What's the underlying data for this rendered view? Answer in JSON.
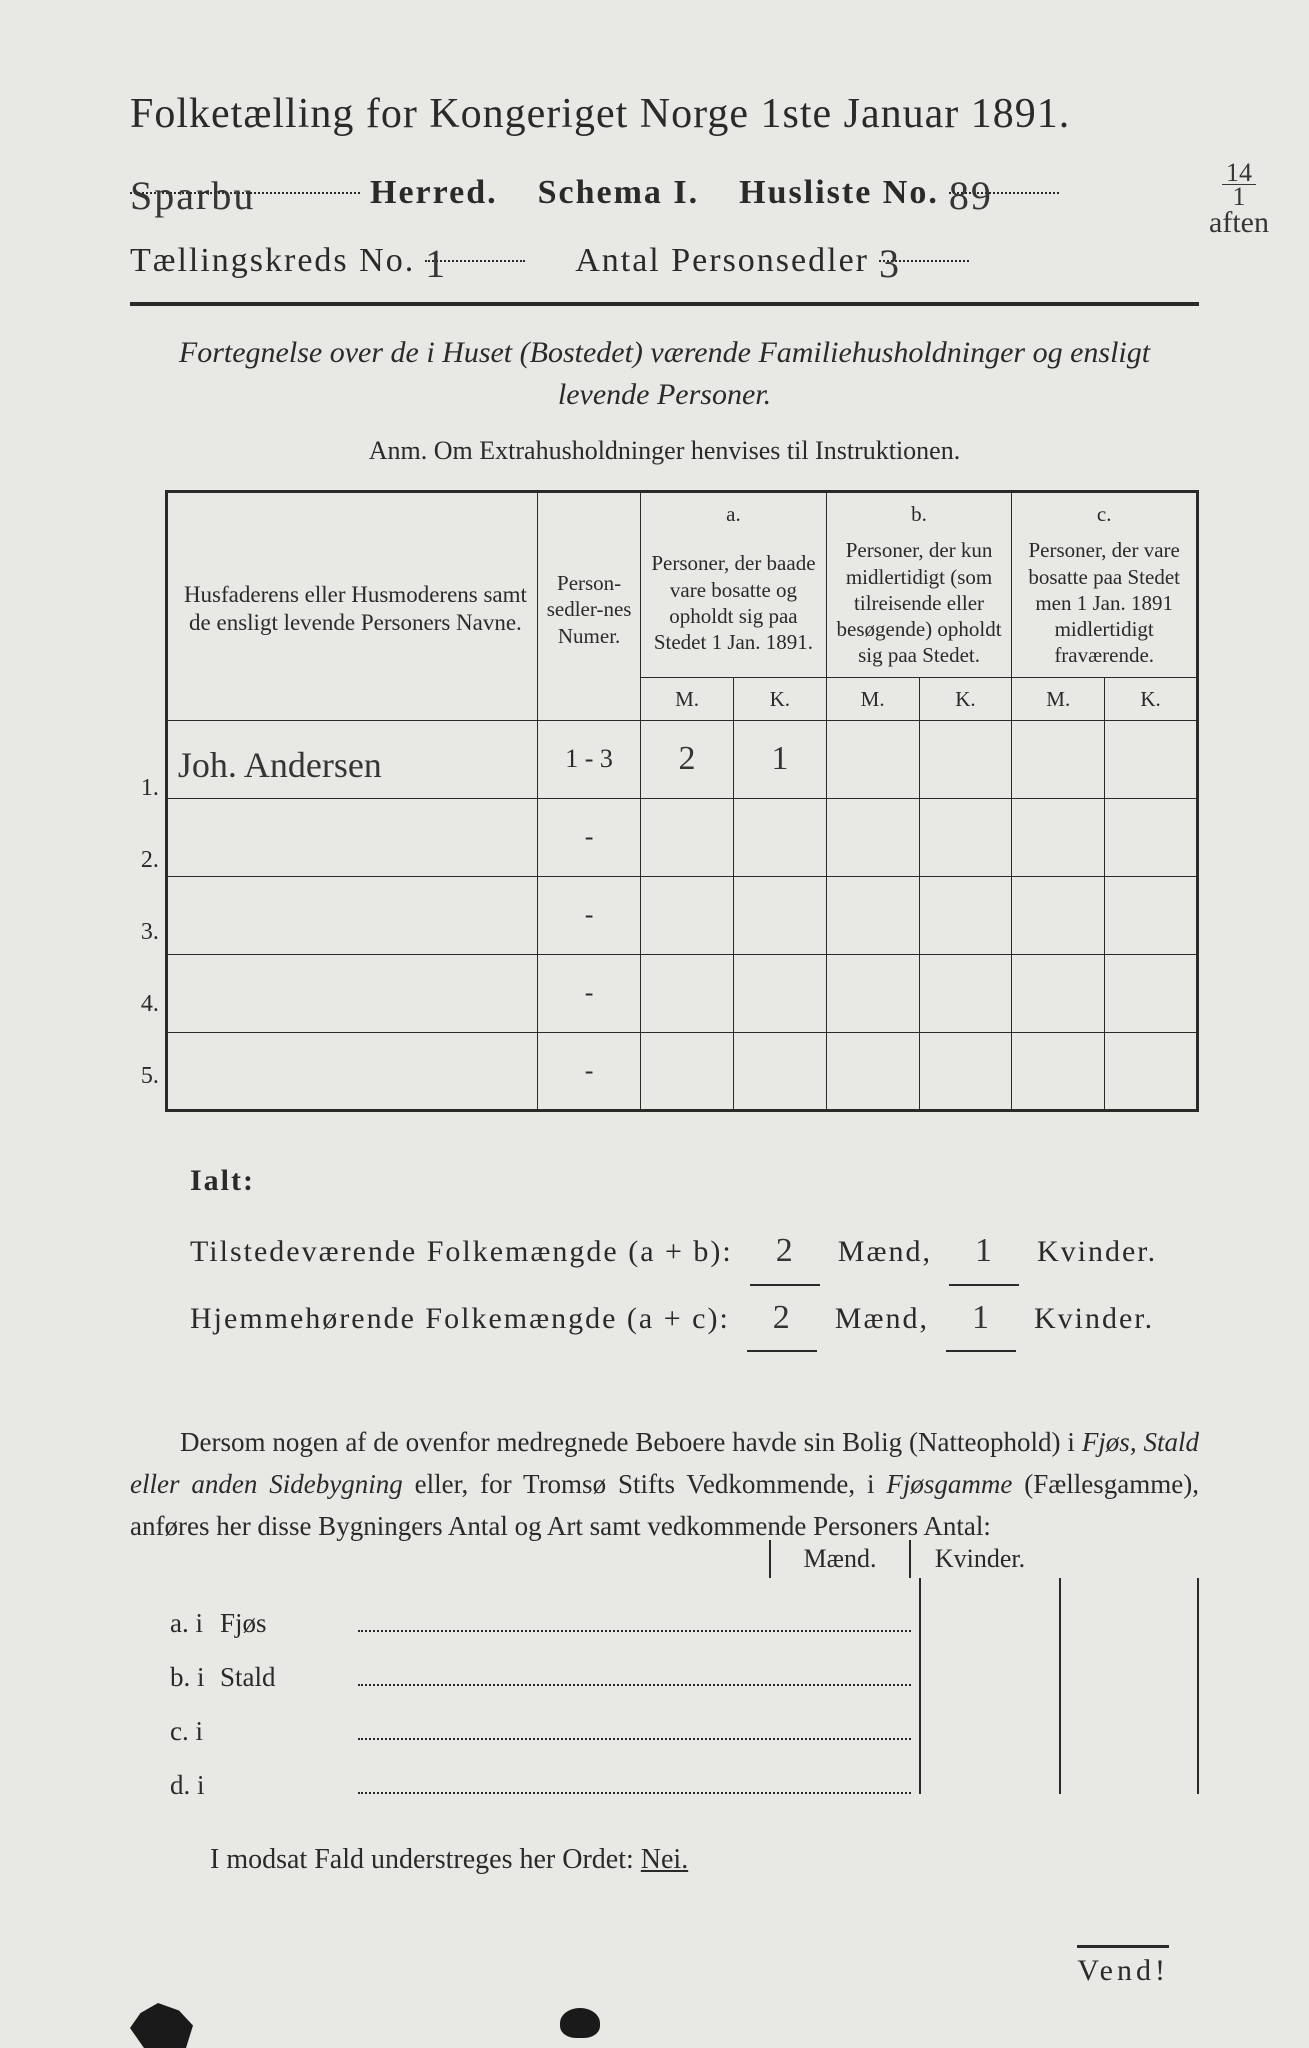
{
  "header": {
    "title": "Folketælling for Kongeriget Norge 1ste Januar 1891.",
    "herred_hand": "Sparbu",
    "herred_label": "Herred.",
    "schema_label": "Schema I.",
    "husliste_label": "Husliste No.",
    "husliste_hand": "89",
    "kreds_label": "Tællingskreds No.",
    "kreds_hand": "1",
    "antal_label": "Antal Personsedler",
    "antal_hand": "3",
    "margin_top": "14",
    "margin_bot": "1",
    "margin_after": "aften"
  },
  "subtitle": "Fortegnelse over de i Huset (Bostedet) værende Familiehusholdninger og ensligt levende Personer.",
  "anm": "Anm.   Om Extrahusholdninger henvises til Instruktionen.",
  "table": {
    "col_names": "Husfaderens eller Husmoderens samt de ensligt levende Personers Navne.",
    "col_num": "Person-sedler-nes Numer.",
    "grp_a_letter": "a.",
    "grp_a": "Personer, der baade vare bosatte og opholdt sig paa Stedet 1 Jan. 1891.",
    "grp_b_letter": "b.",
    "grp_b": "Personer, der kun midlertidigt (som tilreisende eller besøgende) opholdt sig paa Stedet.",
    "grp_c_letter": "c.",
    "grp_c": "Personer, der vare bosatte paa Stedet men 1 Jan. 1891 midlertidigt fraværende.",
    "m": "M.",
    "k": "K.",
    "rows": [
      {
        "n": "1.",
        "name": "Joh. Andersen",
        "num": "1 - 3",
        "am": "2",
        "ak": "1",
        "bm": "",
        "bk": "",
        "cm": "",
        "ck": ""
      },
      {
        "n": "2.",
        "name": "",
        "num": "-",
        "am": "",
        "ak": "",
        "bm": "",
        "bk": "",
        "cm": "",
        "ck": ""
      },
      {
        "n": "3.",
        "name": "",
        "num": "-",
        "am": "",
        "ak": "",
        "bm": "",
        "bk": "",
        "cm": "",
        "ck": ""
      },
      {
        "n": "4.",
        "name": "",
        "num": "-",
        "am": "",
        "ak": "",
        "bm": "",
        "bk": "",
        "cm": "",
        "ck": ""
      },
      {
        "n": "5.",
        "name": "",
        "num": "-",
        "am": "",
        "ak": "",
        "bm": "",
        "bk": "",
        "cm": "",
        "ck": ""
      }
    ]
  },
  "ialt": {
    "label": "Ialt:",
    "line1_a": "Tilstedeværende Folkemængde (a + b):",
    "line2_a": "Hjemmehørende Folkemængde (a + c):",
    "maend": "Mænd,",
    "kvinder": "Kvinder.",
    "v1m": "2",
    "v1k": "1",
    "v2m": "2",
    "v2k": "1"
  },
  "para": {
    "text1": "Dersom nogen af de ovenfor medregnede Beboere havde sin Bolig (Natteophold) i ",
    "it1": "Fjøs, Stald eller anden Sidebygning",
    "text2": " eller, for Tromsø Stifts Vedkommende, i ",
    "it2": "Fjøsgamme",
    "text3": " (Fællesgamme), anføres her disse Bygningers Antal og Art samt vedkommende Personers Antal:"
  },
  "byg": {
    "maend": "Mænd.",
    "kvinder": "Kvinder.",
    "rows": [
      {
        "a": "a.  i",
        "b": "Fjøs"
      },
      {
        "a": "b.  i",
        "b": "Stald"
      },
      {
        "a": "c.  i",
        "b": ""
      },
      {
        "a": "d.  i",
        "b": ""
      }
    ]
  },
  "modsat": "I modsat Fald understreges her Ordet: ",
  "nei": "Nei.",
  "vend": "Vend!"
}
